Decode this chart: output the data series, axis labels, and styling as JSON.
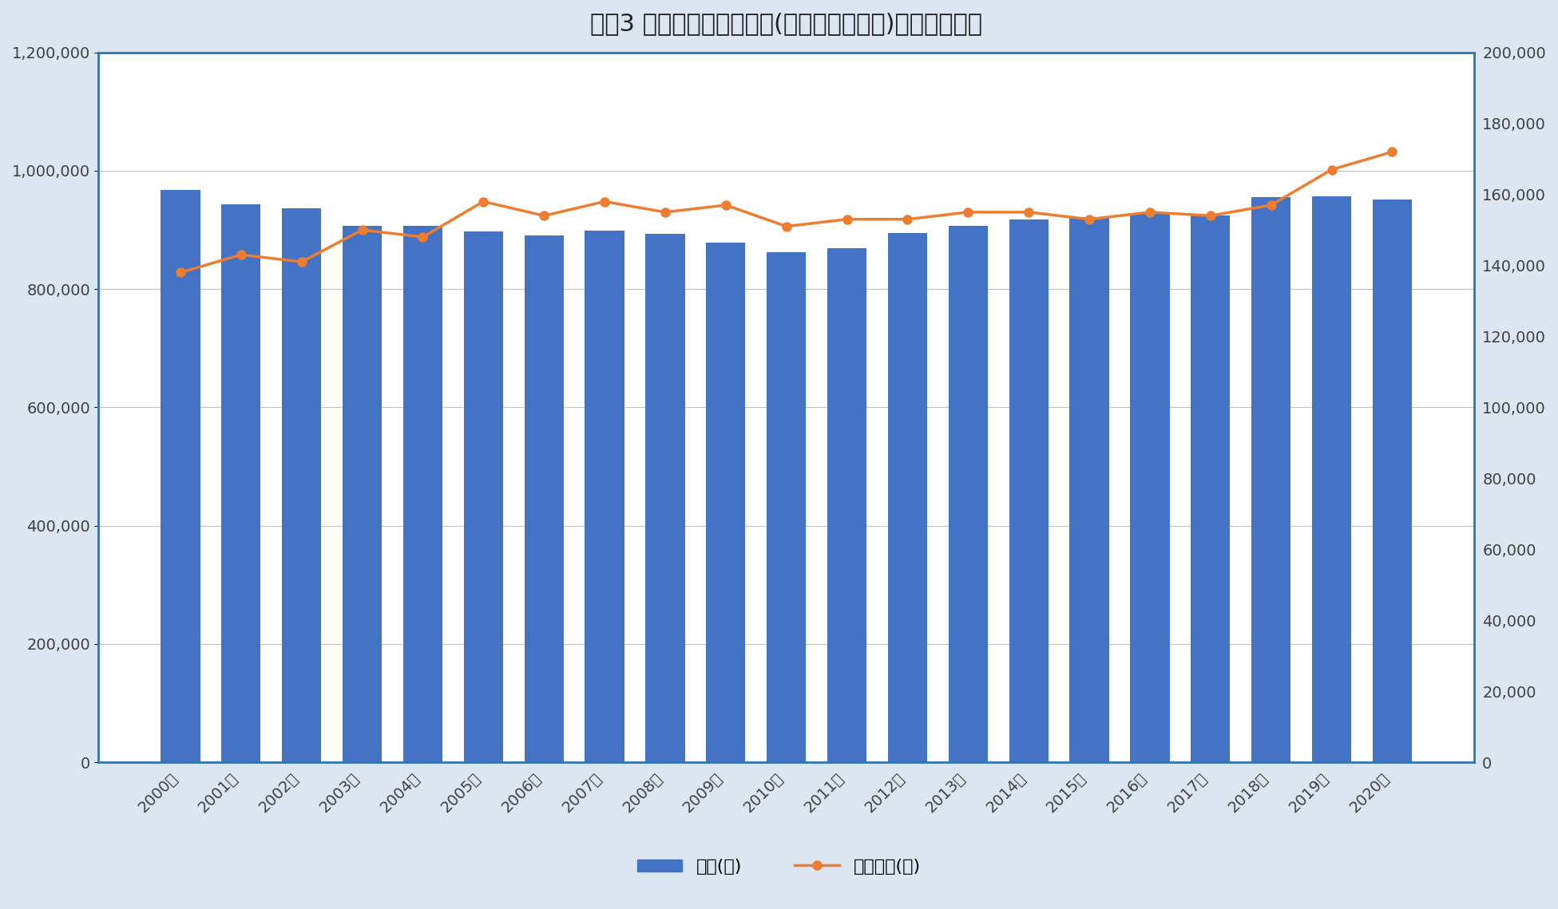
{
  "title": "図表3 年間支出金額の推移(二人以上の世帯)家計調査年報",
  "years": [
    "2000年",
    "2001年",
    "2002年",
    "2003年",
    "2004年",
    "2005年",
    "2006年",
    "2007年",
    "2008年",
    "2009年",
    "2010年",
    "2011年",
    "2012年",
    "2013年",
    "2014年",
    "2015年",
    "2016年",
    "2017年",
    "2018年",
    "2019年",
    "2020年"
  ],
  "food": [
    968000,
    943000,
    936000,
    907000,
    907000,
    898000,
    891000,
    899000,
    893000,
    879000,
    863000,
    869000,
    895000,
    907000,
    917000,
    922000,
    929000,
    924000,
    956000,
    957000,
    952000
  ],
  "medical": [
    138000,
    143000,
    141000,
    150000,
    148000,
    158000,
    154000,
    158000,
    155000,
    157000,
    151000,
    153000,
    153000,
    155000,
    155000,
    153000,
    155000,
    154000,
    157000,
    167000,
    172000
  ],
  "bar_color": "#4472C4",
  "line_color": "#ED7D31",
  "left_ylim": [
    0,
    1200000
  ],
  "right_ylim": [
    0,
    200000
  ],
  "left_yticks": [
    0,
    200000,
    400000,
    600000,
    800000,
    1000000,
    1200000
  ],
  "right_yticks": [
    0,
    20000,
    40000,
    60000,
    80000,
    100000,
    120000,
    140000,
    160000,
    180000,
    200000
  ],
  "legend_food": "食料(円)",
  "legend_medical": "保険医療(円)",
  "outer_bg_color": "#DCE6F1",
  "plot_bg_color": "#FFFFFF",
  "border_color": "#2E75B6",
  "grid_color": "#C0C0C0",
  "title_fontsize": 22,
  "tick_fontsize": 14,
  "legend_fontsize": 16,
  "axis_label_color": "#404040"
}
